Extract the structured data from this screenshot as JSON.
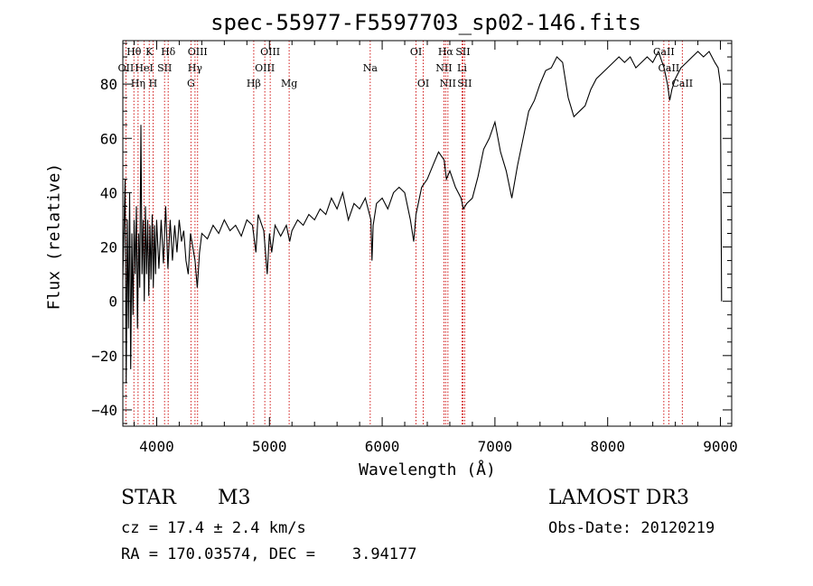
{
  "chart_data": {
    "type": "line",
    "title": "spec-55977-F5597703_sp02-146.fits",
    "xlabel": "Wavelength (Å)",
    "ylabel": "Flux (relative)",
    "xlim": [
      3700,
      9100
    ],
    "ylim": [
      -46,
      96
    ],
    "xticks": [
      4000,
      5000,
      6000,
      7000,
      8000,
      9000
    ],
    "yticks": [
      -40,
      -20,
      0,
      20,
      40,
      60,
      80
    ],
    "grid": false,
    "line_color": "#000000",
    "marker_color": "#cc0000",
    "series": [
      {
        "name": "flux",
        "points": [
          [
            3700,
            8
          ],
          [
            3720,
            45
          ],
          [
            3730,
            -30
          ],
          [
            3740,
            30
          ],
          [
            3750,
            -10
          ],
          [
            3760,
            40
          ],
          [
            3770,
            -25
          ],
          [
            3780,
            25
          ],
          [
            3790,
            -5
          ],
          [
            3800,
            30
          ],
          [
            3810,
            10
          ],
          [
            3820,
            35
          ],
          [
            3830,
            -10
          ],
          [
            3840,
            25
          ],
          [
            3850,
            5
          ],
          [
            3860,
            65
          ],
          [
            3870,
            10
          ],
          [
            3880,
            30
          ],
          [
            3890,
            0
          ],
          [
            3900,
            35
          ],
          [
            3910,
            10
          ],
          [
            3920,
            30
          ],
          [
            3930,
            2
          ],
          [
            3940,
            28
          ],
          [
            3950,
            8
          ],
          [
            3960,
            32
          ],
          [
            3970,
            5
          ],
          [
            3980,
            28
          ],
          [
            3990,
            10
          ],
          [
            4000,
            30
          ],
          [
            4020,
            12
          ],
          [
            4040,
            30
          ],
          [
            4060,
            14
          ],
          [
            4080,
            35
          ],
          [
            4100,
            12
          ],
          [
            4120,
            30
          ],
          [
            4140,
            15
          ],
          [
            4160,
            28
          ],
          [
            4180,
            18
          ],
          [
            4200,
            30
          ],
          [
            4220,
            22
          ],
          [
            4240,
            26
          ],
          [
            4260,
            15
          ],
          [
            4280,
            10
          ],
          [
            4300,
            25
          ],
          [
            4320,
            20
          ],
          [
            4340,
            15
          ],
          [
            4360,
            5
          ],
          [
            4380,
            18
          ],
          [
            4400,
            25
          ],
          [
            4450,
            23
          ],
          [
            4500,
            28
          ],
          [
            4550,
            25
          ],
          [
            4600,
            30
          ],
          [
            4650,
            26
          ],
          [
            4700,
            28
          ],
          [
            4750,
            24
          ],
          [
            4800,
            30
          ],
          [
            4850,
            28
          ],
          [
            4880,
            18
          ],
          [
            4900,
            32
          ],
          [
            4950,
            26
          ],
          [
            4980,
            10
          ],
          [
            5000,
            25
          ],
          [
            5020,
            18
          ],
          [
            5050,
            28
          ],
          [
            5100,
            24
          ],
          [
            5150,
            28
          ],
          [
            5180,
            22
          ],
          [
            5200,
            26
          ],
          [
            5250,
            30
          ],
          [
            5300,
            28
          ],
          [
            5350,
            32
          ],
          [
            5400,
            30
          ],
          [
            5450,
            34
          ],
          [
            5500,
            32
          ],
          [
            5550,
            38
          ],
          [
            5600,
            34
          ],
          [
            5650,
            40
          ],
          [
            5700,
            30
          ],
          [
            5750,
            36
          ],
          [
            5800,
            34
          ],
          [
            5850,
            38
          ],
          [
            5900,
            30
          ],
          [
            5910,
            15
          ],
          [
            5920,
            28
          ],
          [
            5950,
            36
          ],
          [
            6000,
            38
          ],
          [
            6050,
            34
          ],
          [
            6100,
            40
          ],
          [
            6150,
            42
          ],
          [
            6200,
            40
          ],
          [
            6250,
            30
          ],
          [
            6280,
            22
          ],
          [
            6300,
            32
          ],
          [
            6350,
            42
          ],
          [
            6400,
            45
          ],
          [
            6450,
            50
          ],
          [
            6500,
            55
          ],
          [
            6550,
            52
          ],
          [
            6570,
            45
          ],
          [
            6600,
            48
          ],
          [
            6650,
            42
          ],
          [
            6700,
            38
          ],
          [
            6720,
            34
          ],
          [
            6750,
            36
          ],
          [
            6800,
            38
          ],
          [
            6850,
            46
          ],
          [
            6900,
            56
          ],
          [
            6950,
            60
          ],
          [
            7000,
            66
          ],
          [
            7050,
            55
          ],
          [
            7100,
            48
          ],
          [
            7150,
            38
          ],
          [
            7200,
            50
          ],
          [
            7250,
            60
          ],
          [
            7300,
            70
          ],
          [
            7350,
            74
          ],
          [
            7400,
            80
          ],
          [
            7450,
            85
          ],
          [
            7500,
            86
          ],
          [
            7550,
            90
          ],
          [
            7600,
            88
          ],
          [
            7650,
            75
          ],
          [
            7700,
            68
          ],
          [
            7750,
            70
          ],
          [
            7800,
            72
          ],
          [
            7850,
            78
          ],
          [
            7900,
            82
          ],
          [
            7950,
            84
          ],
          [
            8000,
            86
          ],
          [
            8050,
            88
          ],
          [
            8100,
            90
          ],
          [
            8150,
            88
          ],
          [
            8200,
            90
          ],
          [
            8250,
            86
          ],
          [
            8300,
            88
          ],
          [
            8350,
            90
          ],
          [
            8400,
            88
          ],
          [
            8450,
            92
          ],
          [
            8500,
            86
          ],
          [
            8530,
            80
          ],
          [
            8550,
            74
          ],
          [
            8570,
            78
          ],
          [
            8600,
            82
          ],
          [
            8650,
            86
          ],
          [
            8700,
            88
          ],
          [
            8750,
            90
          ],
          [
            8800,
            92
          ],
          [
            8850,
            90
          ],
          [
            8900,
            92
          ],
          [
            8950,
            88
          ],
          [
            8980,
            86
          ],
          [
            9000,
            80
          ],
          [
            9010,
            0
          ]
        ]
      }
    ],
    "lines": [
      {
        "label": "Hθ",
        "w": 3798,
        "row": 0
      },
      {
        "label": "OII",
        "w": 3727,
        "row": 1
      },
      {
        "label": "Hη",
        "w": 3835,
        "row": 2
      },
      {
        "label": "K",
        "w": 3934,
        "row": 0
      },
      {
        "label": "HeI",
        "w": 3889,
        "row": 1
      },
      {
        "label": "H",
        "w": 3968,
        "row": 2
      },
      {
        "label": "Hδ",
        "w": 4102,
        "row": 0
      },
      {
        "label": "SII",
        "w": 4070,
        "row": 1
      },
      {
        "label": "OIII",
        "w": 4363,
        "row": 0
      },
      {
        "label": "Hγ",
        "w": 4340,
        "row": 1
      },
      {
        "label": "G",
        "w": 4304,
        "row": 2
      },
      {
        "label": "Hβ",
        "w": 4861,
        "row": 2
      },
      {
        "label": "OIII",
        "w": 5007,
        "row": 0
      },
      {
        "label": "OIII",
        "w": 4959,
        "row": 1
      },
      {
        "label": "Mg",
        "w": 5175,
        "row": 2
      },
      {
        "label": "Na",
        "w": 5894,
        "row": 1
      },
      {
        "label": "OI",
        "w": 6300,
        "row": 0
      },
      {
        "label": "OI",
        "w": 6364,
        "row": 2
      },
      {
        "label": "Hα",
        "w": 6563,
        "row": 0
      },
      {
        "label": "NII",
        "w": 6548,
        "row": 1
      },
      {
        "label": "NII",
        "w": 6583,
        "row": 2
      },
      {
        "label": "SII",
        "w": 6716,
        "row": 0
      },
      {
        "label": "Li",
        "w": 6708,
        "row": 1
      },
      {
        "label": "SII",
        "w": 6731,
        "row": 2
      },
      {
        "label": "CaII",
        "w": 8498,
        "row": 0
      },
      {
        "label": "CaII",
        "w": 8542,
        "row": 1
      },
      {
        "label": "CaII",
        "w": 8662,
        "row": 2
      }
    ]
  },
  "info": {
    "class": "STAR",
    "subclass": "M3",
    "survey": "LAMOST DR3",
    "cz": "cz = 17.4 ± 2.4 km/s",
    "obs_date": "Obs-Date: 20120219",
    "radec": "RA = 170.03574, DEC =    3.94177"
  }
}
